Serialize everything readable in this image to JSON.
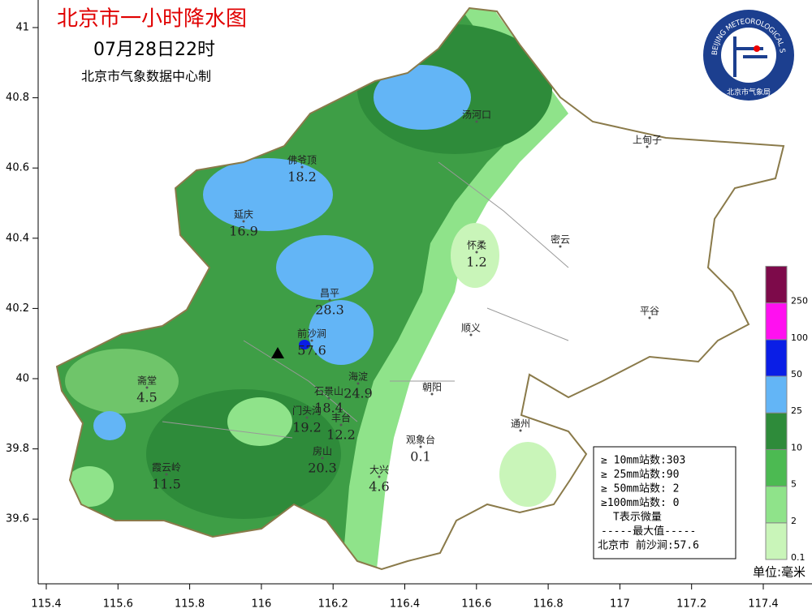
{
  "header": {
    "title": "北京市一小时降水图",
    "time": "07月28日22时",
    "source": "北京市气象数据中心制"
  },
  "logo": {
    "ring": "BEIJING METEOROLOGICAL SERVICE",
    "name": "北京市气象局"
  },
  "axes": {
    "xticks": [
      115.4,
      115.6,
      115.8,
      116,
      116.2,
      116.4,
      116.6,
      116.8,
      117,
      117.2,
      117.4
    ],
    "yticks": [
      41,
      40.8,
      40.6,
      40.4,
      40.2,
      40,
      39.8,
      39.6
    ]
  },
  "stations": [
    {
      "name": "汤河口"
    },
    {
      "name": "上甸子"
    },
    {
      "name": "佛爷顶",
      "value": 18.2
    },
    {
      "name": "延庆",
      "value": 16.9
    },
    {
      "name": "怀柔",
      "value": 1.2
    },
    {
      "name": "密云"
    },
    {
      "name": "昌平",
      "value": 28.3
    },
    {
      "name": "平谷"
    },
    {
      "name": "前沙涧",
      "value": 57.6
    },
    {
      "name": "顺义"
    },
    {
      "name": "海淀",
      "value": 24.9
    },
    {
      "name": "朝阳"
    },
    {
      "name": "石景山",
      "value": 18.4
    },
    {
      "name": "门头沟",
      "value": 19.2
    },
    {
      "name": "丰台",
      "value": 12.2
    },
    {
      "name": "观象台",
      "value": 0.1
    },
    {
      "name": "霞云岭",
      "value": 11.5
    },
    {
      "name": "斋堂",
      "value": 4.5
    },
    {
      "name": "房山",
      "value": 20.3
    },
    {
      "name": "大兴",
      "value": 4.6
    },
    {
      "name": "通州"
    }
  ],
  "legend": {
    "labels": [
      0.1,
      2,
      5,
      10,
      25,
      50,
      100,
      250
    ],
    "colors": [
      "#c9f5b9",
      "#8fe38a",
      "#4cba52",
      "#2e8b3a",
      "#63b5f6",
      "#0a1ee6",
      "#ff10f0",
      "#7d0a4a"
    ],
    "unit": "单位:毫米"
  },
  "stats_box": {
    "lines": [
      "≥ 10mm站数:303",
      "≥ 25mm站数:90",
      "≥ 50mm站数: 2",
      "≥100mm站数: 0",
      "T表示微量",
      "-----最大值-----",
      "北京市 前沙涧:57.6"
    ]
  }
}
